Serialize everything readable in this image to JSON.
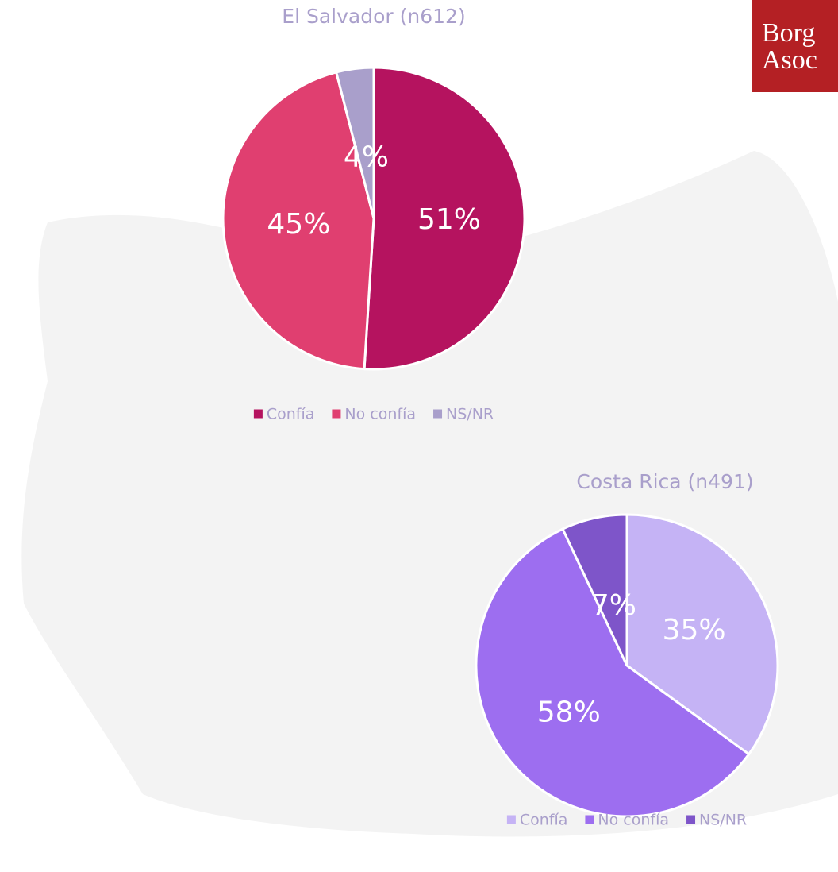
{
  "chart_data": [
    {
      "type": "pie",
      "title": "El Salvador (n612)",
      "categories": [
        "Confía",
        "No confía",
        "NS/NR"
      ],
      "values": [
        51,
        45,
        4
      ],
      "value_labels": [
        "51%",
        "45%",
        "4%"
      ],
      "colors": [
        "#b5135f",
        "#e03f70",
        "#a99fcb"
      ],
      "legend": "bottom"
    },
    {
      "type": "pie",
      "title": "Costa Rica (n491)",
      "categories": [
        "Confía",
        "No confía",
        "NS/NR"
      ],
      "values": [
        35,
        58,
        7
      ],
      "value_labels": [
        "35%",
        "58%",
        "7%"
      ],
      "colors": [
        "#c5b3f5",
        "#9d6ef0",
        "#7e55c9"
      ],
      "legend": "bottom"
    }
  ],
  "logo": {
    "line1": "Borg",
    "line2": "Asoc"
  }
}
